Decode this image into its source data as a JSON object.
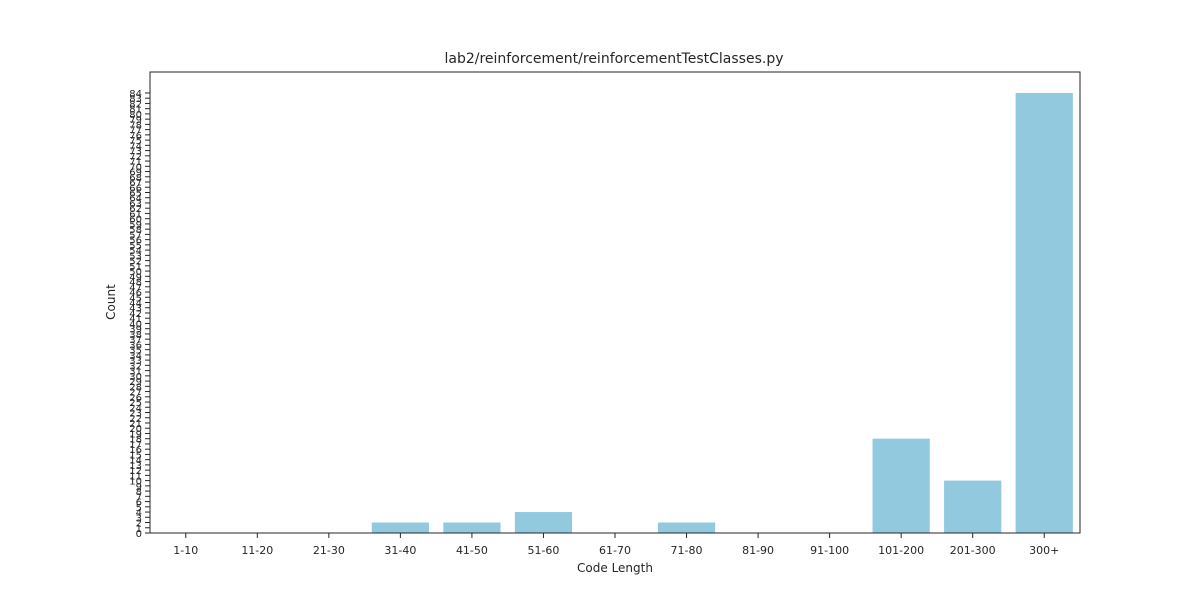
{
  "chart_data": {
    "type": "bar",
    "title": "lab2/reinforcement/reinforcementTestClasses.py",
    "xlabel": "Code Length",
    "ylabel": "Count",
    "categories": [
      "1-10",
      "11-20",
      "21-30",
      "31-40",
      "41-50",
      "51-60",
      "61-70",
      "71-80",
      "81-90",
      "91-100",
      "101-200",
      "201-300",
      "300+"
    ],
    "values": [
      0,
      0,
      0,
      2,
      2,
      4,
      0,
      2,
      0,
      0,
      18,
      10,
      84
    ],
    "yticks": [
      0,
      1,
      2,
      3,
      4,
      5,
      6,
      7,
      8,
      9,
      10,
      11,
      12,
      13,
      14,
      15,
      16,
      17,
      18,
      19,
      20,
      21,
      22,
      23,
      24,
      25,
      26,
      27,
      28,
      29,
      30,
      31,
      32,
      33,
      34,
      35,
      36,
      37,
      38,
      39,
      40,
      41,
      42,
      43,
      44,
      45,
      46,
      47,
      48,
      49,
      50,
      51,
      52,
      53,
      54,
      55,
      56,
      57,
      58,
      59,
      60,
      61,
      62,
      63,
      64,
      65,
      66,
      67,
      68,
      69,
      70,
      71,
      72,
      73,
      74,
      75,
      76,
      77,
      78,
      79,
      80,
      81,
      82,
      83,
      84
    ],
    "ylim": [
      0,
      88
    ],
    "bar_color": "#92c9df",
    "grid": false
  }
}
